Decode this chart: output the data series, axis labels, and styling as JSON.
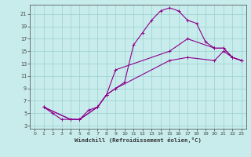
{
  "xlabel": "Windchill (Refroidissement éolien,°C)",
  "bg_color": "#c8ecec",
  "line_color": "#8b008b",
  "grid_color": "#9ad0d0",
  "xlim": [
    -0.5,
    23.5
  ],
  "ylim": [
    2.5,
    22.5
  ],
  "xticks": [
    0,
    1,
    2,
    3,
    4,
    5,
    6,
    7,
    8,
    9,
    10,
    11,
    12,
    13,
    14,
    15,
    16,
    17,
    18,
    19,
    20,
    21,
    22,
    23
  ],
  "yticks": [
    3,
    5,
    7,
    9,
    11,
    13,
    15,
    17,
    19,
    21
  ],
  "series1_x": [
    1,
    2,
    3,
    4,
    5,
    6,
    7,
    8,
    9,
    10,
    11,
    12,
    13,
    14,
    15,
    16,
    17,
    18,
    19,
    20,
    21,
    22,
    23
  ],
  "series1_y": [
    6,
    5,
    4,
    4,
    4,
    5.5,
    6,
    8,
    9,
    10,
    16,
    18,
    20,
    21.5,
    22,
    21.5,
    20,
    19.5,
    16.5,
    15.5,
    15.5,
    14,
    13.5
  ],
  "series2_x": [
    1,
    4,
    5,
    7,
    8,
    9,
    15,
    17,
    20,
    21,
    22,
    23
  ],
  "series2_y": [
    6,
    4,
    4,
    6,
    8,
    12,
    15,
    17,
    15.5,
    15.5,
    14,
    13.5
  ],
  "series3_x": [
    1,
    4,
    5,
    7,
    8,
    9,
    15,
    17,
    20,
    21,
    22,
    23
  ],
  "series3_y": [
    6,
    4,
    4,
    6,
    8,
    9,
    13.5,
    14,
    13.5,
    15,
    14,
    13.5
  ]
}
